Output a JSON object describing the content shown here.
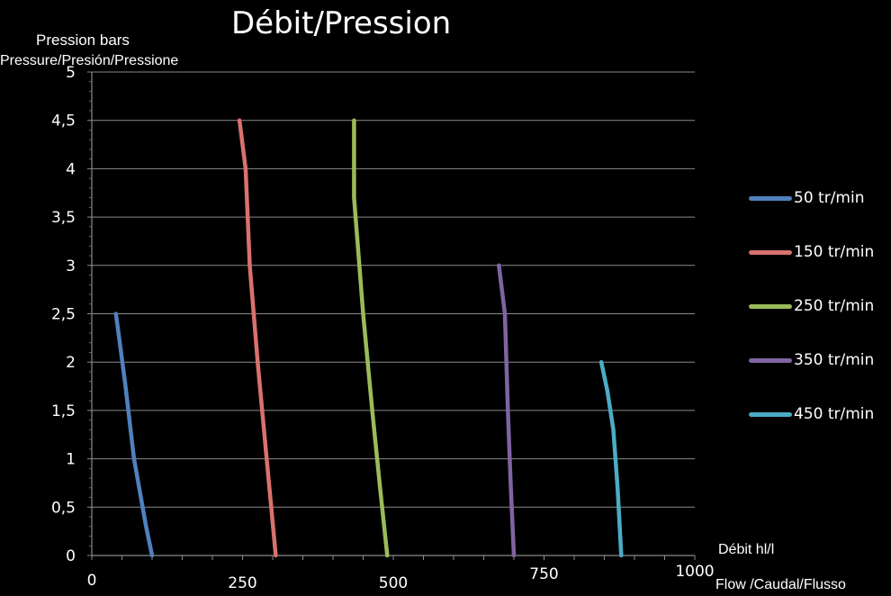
{
  "chart_data": {
    "type": "line",
    "title": "Débit/Pression",
    "ylabel": "Pression bars",
    "ylabel_sub": "Pressure/Presión/Pressione",
    "xlabel": "Débit hl/l",
    "xlabel_sub": "Flow /Caudal/Flusso",
    "xlim": [
      0,
      1000
    ],
    "ylim": [
      0,
      5
    ],
    "x_ticks": [
      "0",
      "250",
      "500",
      "750",
      "1000"
    ],
    "y_ticks": [
      "0",
      "0,5",
      "1",
      "1,5",
      "2",
      "2,5",
      "3",
      "3,5",
      "4",
      "4,5",
      "5"
    ],
    "grid": "horizontal",
    "legend_position": "right",
    "series": [
      {
        "name": "50 tr/min",
        "color": "#4f81bd",
        "points": [
          [
            40,
            2.5
          ],
          [
            55,
            1.8
          ],
          [
            70,
            1.0
          ],
          [
            90,
            0.3
          ],
          [
            100,
            0.0
          ]
        ]
      },
      {
        "name": "150 tr/min",
        "color": "#d9716e",
        "points": [
          [
            245,
            4.5
          ],
          [
            255,
            4.0
          ],
          [
            262,
            3.0
          ],
          [
            275,
            2.0
          ],
          [
            290,
            1.0
          ],
          [
            305,
            0.0
          ]
        ]
      },
      {
        "name": "250 tr/min",
        "color": "#9bbb59",
        "points": [
          [
            435,
            4.5
          ],
          [
            435,
            3.7
          ],
          [
            450,
            2.5
          ],
          [
            465,
            1.5
          ],
          [
            478,
            0.7
          ],
          [
            490,
            0.0
          ]
        ]
      },
      {
        "name": "350 tr/min",
        "color": "#8064a2",
        "points": [
          [
            675,
            3.0
          ],
          [
            685,
            2.5
          ],
          [
            690,
            1.5
          ],
          [
            695,
            0.7
          ],
          [
            700,
            0.0
          ]
        ]
      },
      {
        "name": "450 tr/min",
        "color": "#4bacc6",
        "points": [
          [
            845,
            2.0
          ],
          [
            855,
            1.7
          ],
          [
            865,
            1.3
          ],
          [
            872,
            0.7
          ],
          [
            878,
            0.0
          ]
        ]
      }
    ]
  }
}
